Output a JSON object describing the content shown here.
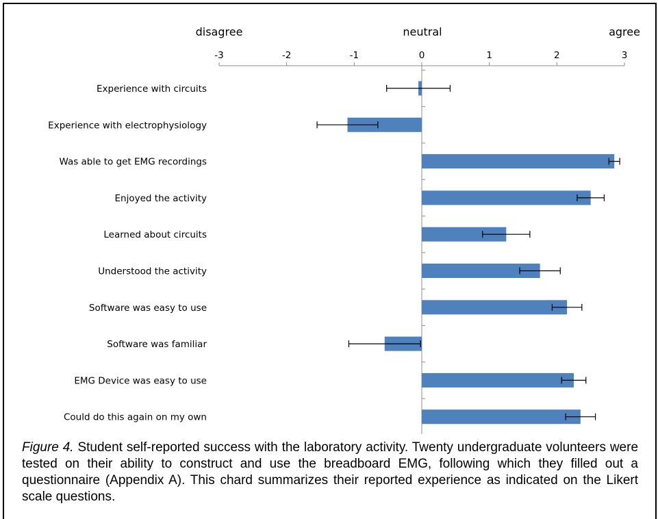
{
  "chart_data": {
    "type": "bar",
    "orientation": "horizontal",
    "scale_labels": {
      "left": "disagree",
      "center": "neutral",
      "right": "agree"
    },
    "x_ticks": [
      "-3",
      "-2",
      "-1",
      "0",
      "1",
      "2",
      "3"
    ],
    "xlim": [
      -3,
      3
    ],
    "grid": false,
    "legend": "none",
    "bar_color": "#4f81bd",
    "categories": [
      "Experience with circuits",
      "Experience with electrophysiology",
      "Was able to get EMG recordings",
      "Enjoyed the activity",
      "Learned about circuits",
      "Understood the activity",
      "Software was easy to use",
      "Software was familiar",
      "EMG Device was easy to use",
      "Could do this again on my own"
    ],
    "values": [
      -0.05,
      -1.1,
      2.85,
      2.5,
      1.25,
      1.75,
      2.15,
      -0.55,
      2.25,
      2.35
    ],
    "error": [
      0.47,
      0.45,
      0.08,
      0.2,
      0.35,
      0.3,
      0.22,
      0.53,
      0.18,
      0.22
    ]
  },
  "caption": {
    "figure_label": "Figure 4.",
    "text": "  Student self-reported success with the laboratory activity.  Twenty undergraduate volunteers were tested on their ability to construct and use the breadboard EMG, following which they filled out a questionnaire (Appendix A).  This chard summarizes their reported experience as indicated on the Likert scale questions."
  }
}
